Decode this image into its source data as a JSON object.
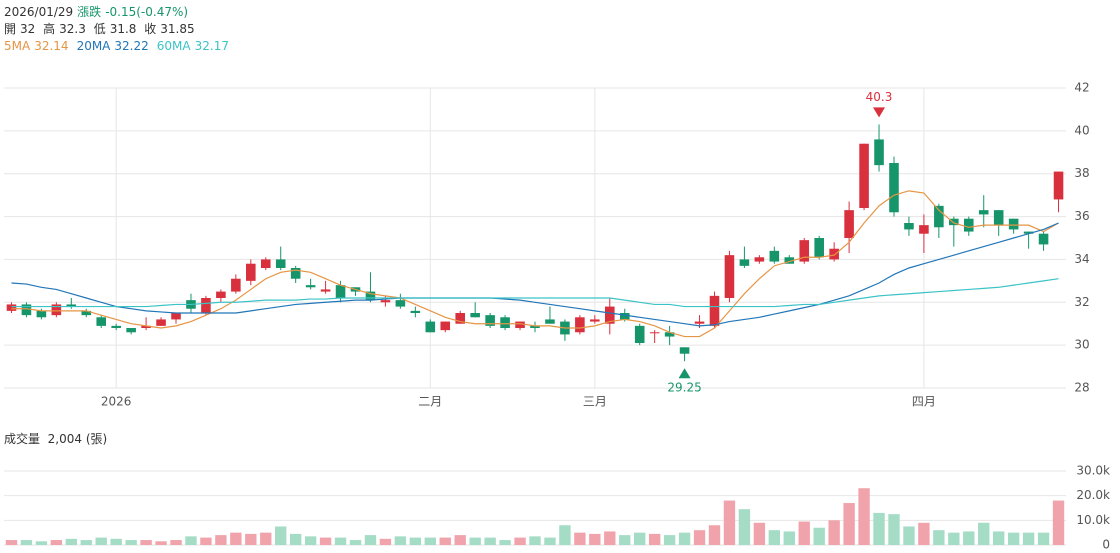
{
  "chart_data": [
    {
      "type": "candlestick",
      "info": {
        "date": "2026/01/29",
        "change_label": "漲跌",
        "change": "-0.15(-0.47%)",
        "open_label": "開",
        "open": 32,
        "high_label": "高",
        "high": 32.3,
        "low_label": "低",
        "low": 31.8,
        "close_label": "收",
        "close": 31.85
      },
      "categories": [
        null,
        null,
        null,
        null,
        null,
        null,
        null,
        "2026",
        null,
        null,
        null,
        null,
        null,
        null,
        null,
        null,
        null,
        null,
        null,
        null,
        null,
        null,
        null,
        null,
        null,
        null,
        null,
        null,
        "二月",
        null,
        null,
        null,
        null,
        null,
        null,
        null,
        null,
        null,
        null,
        "三月",
        null,
        null,
        null,
        null,
        null,
        null,
        null,
        null,
        null,
        null,
        null,
        null,
        null,
        null,
        null,
        null,
        null,
        null,
        null,
        null,
        null,
        "四月",
        null,
        null,
        null,
        null,
        null,
        null,
        null,
        null,
        null
      ],
      "open": [
        31.6,
        31.9,
        31.6,
        31.4,
        31.9,
        31.6,
        31.3,
        30.9,
        30.8,
        30.8,
        30.9,
        31.2,
        32.1,
        31.5,
        32.2,
        32.5,
        33.0,
        33.6,
        34.0,
        33.6,
        32.8,
        32.5,
        32.8,
        32.7,
        32.5,
        32.0,
        32.1,
        31.6,
        31.1,
        30.7,
        31.0,
        31.5,
        31.4,
        31.3,
        30.8,
        30.9,
        31.2,
        31.1,
        30.6,
        31.1,
        31.0,
        31.5,
        30.9,
        30.6,
        30.6,
        29.9,
        31.0,
        30.9,
        32.2,
        34.0,
        33.9,
        34.4,
        34.1,
        33.9,
        35.0,
        34.0,
        35.0,
        36.4,
        39.6,
        38.5,
        35.7,
        35.2,
        36.5,
        35.9,
        35.9,
        36.3,
        36.3,
        35.9,
        35.3,
        35.2,
        36.8
      ],
      "high": [
        32.0,
        32.0,
        31.7,
        32.0,
        32.2,
        31.7,
        31.4,
        31.0,
        30.8,
        31.3,
        31.3,
        31.5,
        32.4,
        32.3,
        32.6,
        33.3,
        34.0,
        34.1,
        34.6,
        33.7,
        33.1,
        33.0,
        33.0,
        32.7,
        33.4,
        32.3,
        32.4,
        31.8,
        31.2,
        31.1,
        31.6,
        32.0,
        31.5,
        31.4,
        31.1,
        31.1,
        31.8,
        31.2,
        31.4,
        31.4,
        32.2,
        31.7,
        31.0,
        30.7,
        30.9,
        29.9,
        31.4,
        32.5,
        34.4,
        34.6,
        34.2,
        34.6,
        34.2,
        35.0,
        35.1,
        34.8,
        36.7,
        39.4,
        40.3,
        38.8,
        36.0,
        36.1,
        36.6,
        36.0,
        36.0,
        37.0,
        36.3,
        35.9,
        35.3,
        35.3,
        38.1
      ],
      "low": [
        31.5,
        31.3,
        31.2,
        31.3,
        31.7,
        31.3,
        30.8,
        30.7,
        30.5,
        30.7,
        30.9,
        31.0,
        31.5,
        31.4,
        32.0,
        32.4,
        32.8,
        33.5,
        33.5,
        32.9,
        32.6,
        32.4,
        32.0,
        32.3,
        32.0,
        31.8,
        31.7,
        31.3,
        30.6,
        30.6,
        31.0,
        31.3,
        30.8,
        30.7,
        30.7,
        30.6,
        31.0,
        30.2,
        30.5,
        31.0,
        30.5,
        31.1,
        30.0,
        30.1,
        30.0,
        29.25,
        30.8,
        30.8,
        32.0,
        33.6,
        33.8,
        33.8,
        33.8,
        33.8,
        34.0,
        33.9,
        34.3,
        36.3,
        38.1,
        36.0,
        35.1,
        34.3,
        35.0,
        34.6,
        35.1,
        35.5,
        35.1,
        35.2,
        34.5,
        34.4,
        36.2
      ],
      "close": [
        31.9,
        31.4,
        31.3,
        31.9,
        31.8,
        31.4,
        30.9,
        30.8,
        30.6,
        30.9,
        31.2,
        31.5,
        31.7,
        32.2,
        32.5,
        33.1,
        33.8,
        34.0,
        33.6,
        33.1,
        32.7,
        32.6,
        32.2,
        32.5,
        32.1,
        32.1,
        31.8,
        31.5,
        30.6,
        31.1,
        31.5,
        31.3,
        30.9,
        30.8,
        31.1,
        30.8,
        31.0,
        30.5,
        31.3,
        31.2,
        31.8,
        31.2,
        30.1,
        30.6,
        30.4,
        29.6,
        31.1,
        32.3,
        34.2,
        33.7,
        34.1,
        33.9,
        33.8,
        34.9,
        34.1,
        34.5,
        36.3,
        39.4,
        38.4,
        36.2,
        35.4,
        35.6,
        35.5,
        35.6,
        35.3,
        36.1,
        35.6,
        35.4,
        35.2,
        34.7,
        38.1
      ],
      "up_color": "#d9303e",
      "down_color": "#16956b",
      "series": [
        {
          "name": "5MA",
          "legend_value": 32.14,
          "color": "#e69545",
          "values": [
            31.7,
            31.7,
            31.6,
            31.6,
            31.6,
            31.6,
            31.4,
            31.2,
            31.0,
            30.9,
            30.8,
            30.9,
            31.1,
            31.4,
            31.7,
            32.1,
            32.6,
            33.1,
            33.4,
            33.5,
            33.4,
            33.1,
            32.8,
            32.6,
            32.4,
            32.3,
            32.2,
            31.9,
            31.6,
            31.3,
            31.1,
            31.0,
            31.0,
            31.0,
            31.0,
            30.9,
            30.9,
            30.8,
            30.8,
            30.9,
            31.1,
            31.2,
            31.1,
            30.9,
            30.6,
            30.4,
            30.4,
            30.8,
            31.6,
            32.4,
            33.1,
            33.7,
            33.9,
            34.1,
            34.1,
            34.2,
            34.8,
            35.7,
            36.5,
            37.0,
            37.2,
            37.1,
            36.3,
            35.7,
            35.5,
            35.6,
            35.6,
            35.6,
            35.6,
            35.3,
            35.7
          ]
        },
        {
          "name": "20MA",
          "legend_value": 32.22,
          "color": "#2176b8",
          "values": [
            32.9,
            32.85,
            32.7,
            32.6,
            32.4,
            32.2,
            32.0,
            31.8,
            31.7,
            31.6,
            31.55,
            31.5,
            31.5,
            31.5,
            31.5,
            31.5,
            31.6,
            31.7,
            31.8,
            31.9,
            31.95,
            32.0,
            32.05,
            32.1,
            32.1,
            32.15,
            32.2,
            32.2,
            32.2,
            32.2,
            32.2,
            32.2,
            32.2,
            32.15,
            32.1,
            32.0,
            31.9,
            31.8,
            31.7,
            31.6,
            31.5,
            31.4,
            31.3,
            31.2,
            31.1,
            31.0,
            30.9,
            30.95,
            31.1,
            31.2,
            31.3,
            31.45,
            31.6,
            31.75,
            31.9,
            32.1,
            32.3,
            32.6,
            32.9,
            33.3,
            33.6,
            33.8,
            34.0,
            34.2,
            34.4,
            34.6,
            34.8,
            35.0,
            35.2,
            35.4,
            35.7
          ]
        },
        {
          "name": "60MA",
          "legend_value": 32.17,
          "color": "#3cc3c6",
          "values": [
            31.8,
            31.8,
            31.8,
            31.8,
            31.8,
            31.8,
            31.8,
            31.8,
            31.8,
            31.8,
            31.85,
            31.9,
            31.9,
            31.95,
            32.0,
            32.0,
            32.05,
            32.1,
            32.1,
            32.1,
            32.15,
            32.15,
            32.2,
            32.2,
            32.2,
            32.2,
            32.2,
            32.2,
            32.2,
            32.2,
            32.2,
            32.2,
            32.2,
            32.2,
            32.2,
            32.2,
            32.2,
            32.2,
            32.2,
            32.2,
            32.2,
            32.1,
            32.0,
            31.9,
            31.9,
            31.8,
            31.8,
            31.8,
            31.8,
            31.8,
            31.8,
            31.8,
            31.85,
            31.9,
            31.9,
            32.0,
            32.1,
            32.2,
            32.3,
            32.35,
            32.4,
            32.45,
            32.5,
            32.55,
            32.6,
            32.65,
            32.7,
            32.8,
            32.9,
            33.0,
            33.1
          ]
        }
      ],
      "ylim": [
        28,
        42
      ],
      "yticks": [
        28,
        30,
        32,
        34,
        36,
        38,
        40,
        42
      ],
      "grid": true
    },
    {
      "type": "bar",
      "title": "成交量",
      "current": "2,004 (張)",
      "values": [
        2000,
        2000,
        1500,
        2000,
        2500,
        2000,
        3000,
        2500,
        2000,
        2000,
        1500,
        2000,
        3500,
        3000,
        4000,
        5000,
        4500,
        5000,
        7500,
        4500,
        3500,
        3000,
        3000,
        2000,
        4000,
        2500,
        3500,
        3000,
        3000,
        3000,
        4000,
        3000,
        3000,
        2000,
        3000,
        3500,
        3000,
        8000,
        5000,
        4500,
        5500,
        4000,
        5000,
        4500,
        4000,
        5000,
        6000,
        8000,
        18000,
        14500,
        9000,
        6000,
        5500,
        9500,
        7000,
        10000,
        17000,
        23000,
        13000,
        12500,
        7500,
        9000,
        6000,
        5000,
        5500,
        9000,
        5500,
        5000,
        5000,
        5000,
        18000
      ],
      "up_color": "#f0a3ab",
      "down_color": "#a4dcc6",
      "ylim": [
        0,
        32000
      ],
      "yticks": [
        0,
        {
          "value": 10000,
          "label": "10.0k"
        },
        {
          "value": 20000,
          "label": "20.0k"
        },
        {
          "value": 30000,
          "label": "30.0k"
        }
      ]
    }
  ]
}
